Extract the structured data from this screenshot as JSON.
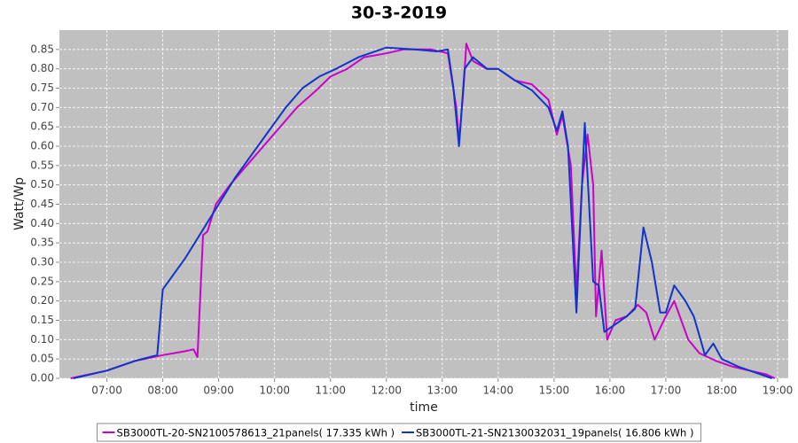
{
  "chart_data": {
    "type": "line",
    "title": "30-3-2019",
    "x_label": "time",
    "y_label": "Watt/Wp",
    "xlim": [
      6.15,
      19.19
    ],
    "ylim": [
      0,
      0.9
    ],
    "grid": true,
    "legend": "bottom",
    "xticks": [
      {
        "value": 7,
        "label": "07:00"
      },
      {
        "value": 8,
        "label": "08:00"
      },
      {
        "value": 9,
        "label": "09:00"
      },
      {
        "value": 10,
        "label": "10:00"
      },
      {
        "value": 11,
        "label": "11:00"
      },
      {
        "value": 12,
        "label": "12:00"
      },
      {
        "value": 13,
        "label": "13:00"
      },
      {
        "value": 14,
        "label": "14:00"
      },
      {
        "value": 15,
        "label": "15:00"
      },
      {
        "value": 16,
        "label": "16:00"
      },
      {
        "value": 17,
        "label": "17:00"
      },
      {
        "value": 18,
        "label": "18:00"
      },
      {
        "value": 19,
        "label": "19:00"
      }
    ],
    "yticks": [
      {
        "value": 0,
        "label": "0.00"
      },
      {
        "value": 0.05,
        "label": "0.05"
      },
      {
        "value": 0.1,
        "label": "0.10"
      },
      {
        "value": 0.15,
        "label": "0.15"
      },
      {
        "value": 0.2,
        "label": "0.20"
      },
      {
        "value": 0.25,
        "label": "0.25"
      },
      {
        "value": 0.3,
        "label": "0.30"
      },
      {
        "value": 0.35,
        "label": "0.35"
      },
      {
        "value": 0.4,
        "label": "0.40"
      },
      {
        "value": 0.45,
        "label": "0.45"
      },
      {
        "value": 0.5,
        "label": "0.50"
      },
      {
        "value": 0.55,
        "label": "0.55"
      },
      {
        "value": 0.6,
        "label": "0.60"
      },
      {
        "value": 0.65,
        "label": "0.65"
      },
      {
        "value": 0.7,
        "label": "0.70"
      },
      {
        "value": 0.75,
        "label": "0.75"
      },
      {
        "value": 0.8,
        "label": "0.80"
      },
      {
        "value": 0.85,
        "label": "0.85"
      }
    ],
    "series": [
      {
        "name": "SB3000TL-20-SN2100578613_21panels( 17.335 kWh )",
        "color": "#cc00cc",
        "x": [
          6.35,
          7.0,
          7.5,
          8.0,
          8.2,
          8.4,
          8.55,
          8.62,
          8.72,
          8.8,
          8.95,
          9.2,
          9.5,
          9.8,
          10.1,
          10.4,
          10.75,
          11.0,
          11.3,
          11.6,
          12.0,
          12.3,
          12.8,
          13.1,
          13.25,
          13.3,
          13.38,
          13.43,
          13.55,
          13.8,
          14.0,
          14.3,
          14.6,
          14.9,
          15.05,
          15.15,
          15.3,
          15.4,
          15.5,
          15.6,
          15.7,
          15.75,
          15.85,
          15.95,
          16.1,
          16.3,
          16.5,
          16.65,
          16.8,
          17.0,
          17.15,
          17.4,
          17.6,
          17.9,
          18.2,
          18.5,
          18.8,
          18.95
        ],
        "values": [
          0,
          0.02,
          0.045,
          0.06,
          0.065,
          0.07,
          0.075,
          0.055,
          0.37,
          0.38,
          0.45,
          0.5,
          0.55,
          0.6,
          0.65,
          0.7,
          0.745,
          0.78,
          0.8,
          0.83,
          0.84,
          0.85,
          0.85,
          0.84,
          0.7,
          0.61,
          0.75,
          0.865,
          0.82,
          0.8,
          0.8,
          0.77,
          0.76,
          0.72,
          0.63,
          0.68,
          0.55,
          0.22,
          0.5,
          0.63,
          0.5,
          0.16,
          0.33,
          0.1,
          0.15,
          0.16,
          0.19,
          0.17,
          0.1,
          0.16,
          0.2,
          0.1,
          0.065,
          0.045,
          0.03,
          0.02,
          0.01,
          0
        ]
      },
      {
        "name": "SB3000TL-21-SN2130032031_19panels( 16.806 kWh )",
        "color": "#1133cc",
        "x": [
          6.4,
          7.0,
          7.5,
          7.9,
          8.0,
          8.1,
          8.4,
          8.7,
          9.0,
          9.3,
          9.6,
          9.9,
          10.2,
          10.5,
          10.8,
          11.1,
          11.5,
          12.0,
          12.5,
          12.9,
          13.1,
          13.2,
          13.3,
          13.4,
          13.55,
          13.8,
          14.0,
          14.3,
          14.6,
          14.9,
          15.05,
          15.15,
          15.25,
          15.4,
          15.55,
          15.7,
          15.8,
          15.9,
          16.1,
          16.3,
          16.45,
          16.6,
          16.75,
          16.9,
          17.0,
          17.15,
          17.35,
          17.5,
          17.7,
          17.85,
          18.0,
          18.3,
          18.6,
          18.9
        ],
        "values": [
          0,
          0.02,
          0.045,
          0.06,
          0.23,
          0.25,
          0.31,
          0.38,
          0.45,
          0.52,
          0.58,
          0.64,
          0.7,
          0.75,
          0.78,
          0.8,
          0.83,
          0.855,
          0.85,
          0.845,
          0.85,
          0.75,
          0.6,
          0.8,
          0.83,
          0.8,
          0.8,
          0.77,
          0.745,
          0.7,
          0.64,
          0.69,
          0.6,
          0.17,
          0.66,
          0.25,
          0.24,
          0.12,
          0.14,
          0.16,
          0.18,
          0.39,
          0.3,
          0.17,
          0.17,
          0.24,
          0.2,
          0.16,
          0.06,
          0.09,
          0.05,
          0.03,
          0.015,
          0
        ]
      }
    ]
  }
}
